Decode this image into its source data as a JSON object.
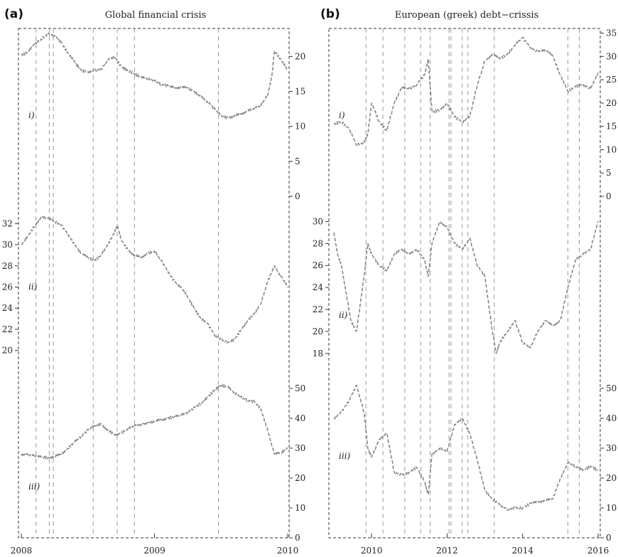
{
  "colors": {
    "series": "#808080",
    "event_line": "#9a9a9a",
    "frame": "#333333"
  },
  "chart_data": [
    {
      "type": "line",
      "panel_label": "(a)",
      "title": "Global financial crisis",
      "x_axis": {
        "range": [
          2008.0,
          2010.0
        ],
        "ticks": [
          2008,
          2009,
          2010
        ],
        "tick_labels": [
          "2008",
          "2009",
          "2010"
        ]
      },
      "event_dates": [
        2008.11,
        2008.21,
        2008.24,
        2008.54,
        2008.72,
        2008.85,
        2009.48
      ],
      "grid": false,
      "series": [
        {
          "label": "i)",
          "axis_side": "right",
          "ylim": [
            0,
            24
          ],
          "ticks": [
            0,
            5,
            10,
            15,
            20
          ],
          "x": [
            2008.0,
            2008.05,
            2008.1,
            2008.15,
            2008.2,
            2008.25,
            2008.3,
            2008.35,
            2008.4,
            2008.45,
            2008.5,
            2008.55,
            2008.6,
            2008.65,
            2008.7,
            2008.75,
            2008.8,
            2008.85,
            2008.9,
            2008.95,
            2009.0,
            2009.05,
            2009.1,
            2009.15,
            2009.2,
            2009.25,
            2009.3,
            2009.35,
            2009.4,
            2009.45,
            2009.5,
            2009.55,
            2009.6,
            2009.65,
            2009.7,
            2009.75,
            2009.8,
            2009.85,
            2009.88,
            2009.9,
            2009.95,
            2010.0
          ],
          "y": [
            20.2,
            20.6,
            21.8,
            22.5,
            23.2,
            23.0,
            22.0,
            20.5,
            19.2,
            18.0,
            17.8,
            18.0,
            18.2,
            19.5,
            20.0,
            18.5,
            18.0,
            17.5,
            17.0,
            16.8,
            16.5,
            16.0,
            15.8,
            15.5,
            15.6,
            15.5,
            15.0,
            14.2,
            13.5,
            12.5,
            11.5,
            11.2,
            11.5,
            11.8,
            12.2,
            12.6,
            13.0,
            14.5,
            17.0,
            20.8,
            19.5,
            18.0
          ]
        },
        {
          "label": "ii)",
          "axis_side": "left",
          "ylim": [
            18.5,
            33.5
          ],
          "ticks": [
            20,
            22,
            24,
            26,
            28,
            30,
            32
          ],
          "x": [
            2008.0,
            2008.05,
            2008.1,
            2008.15,
            2008.2,
            2008.25,
            2008.3,
            2008.35,
            2008.4,
            2008.45,
            2008.5,
            2008.55,
            2008.6,
            2008.65,
            2008.7,
            2008.72,
            2008.75,
            2008.8,
            2008.85,
            2008.9,
            2008.95,
            2009.0,
            2009.05,
            2009.1,
            2009.15,
            2009.2,
            2009.25,
            2009.3,
            2009.35,
            2009.4,
            2009.45,
            2009.5,
            2009.55,
            2009.6,
            2009.65,
            2009.7,
            2009.75,
            2009.8,
            2009.85,
            2009.9,
            2009.95,
            2010.0
          ],
          "y": [
            30.0,
            30.8,
            31.8,
            32.6,
            32.5,
            32.2,
            31.8,
            31.0,
            30.0,
            29.2,
            28.8,
            28.5,
            29.0,
            30.0,
            31.2,
            31.8,
            30.5,
            29.5,
            29.0,
            28.8,
            29.2,
            29.4,
            28.5,
            27.5,
            26.5,
            26.0,
            25.0,
            24.0,
            23.0,
            22.5,
            21.5,
            21.0,
            20.8,
            21.0,
            22.0,
            22.8,
            23.5,
            24.5,
            26.5,
            28.0,
            27.0,
            26.0
          ]
        },
        {
          "label": "iii)",
          "axis_side": "right",
          "ylim": [
            0,
            55
          ],
          "ticks": [
            0,
            10,
            20,
            30,
            40,
            50
          ],
          "x": [
            2008.0,
            2008.05,
            2008.1,
            2008.15,
            2008.2,
            2008.25,
            2008.3,
            2008.35,
            2008.4,
            2008.45,
            2008.5,
            2008.55,
            2008.6,
            2008.65,
            2008.7,
            2008.75,
            2008.8,
            2008.85,
            2008.9,
            2008.95,
            2009.0,
            2009.05,
            2009.1,
            2009.15,
            2009.2,
            2009.25,
            2009.3,
            2009.35,
            2009.4,
            2009.45,
            2009.5,
            2009.55,
            2009.6,
            2009.65,
            2009.7,
            2009.75,
            2009.8,
            2009.85,
            2009.9,
            2009.95,
            2010.0
          ],
          "y": [
            28.0,
            27.8,
            27.5,
            27.0,
            26.8,
            27.2,
            28.0,
            30.0,
            32.0,
            34.0,
            36.0,
            37.5,
            38.0,
            36.0,
            34.5,
            35.0,
            36.5,
            37.5,
            38.0,
            38.5,
            39.0,
            39.5,
            40.0,
            40.5,
            41.0,
            42.0,
            43.5,
            45.0,
            47.0,
            49.5,
            51.0,
            50.5,
            48.5,
            47.0,
            46.0,
            45.5,
            43.0,
            36.0,
            28.0,
            28.5,
            30.0
          ]
        }
      ]
    },
    {
      "type": "line",
      "panel_label": "(b)",
      "title": "European (greek) debt−crissis",
      "x_axis": {
        "range": [
          2009.0,
          2016.0
        ],
        "ticks": [
          2010,
          2012,
          2014,
          2016
        ],
        "tick_labels": [
          "2010",
          "2012",
          "2014",
          "2016"
        ]
      },
      "event_dates": [
        2009.85,
        2010.3,
        2010.88,
        2011.3,
        2011.55,
        2012.05,
        2012.1,
        2012.4,
        2012.55,
        2013.25,
        2015.2,
        2015.5
      ],
      "grid": false,
      "series": [
        {
          "label": "i)",
          "axis_side": "right",
          "ylim": [
            0,
            36
          ],
          "ticks": [
            0,
            5,
            10,
            15,
            20,
            25,
            30,
            35
          ],
          "x": [
            2009.0,
            2009.2,
            2009.4,
            2009.6,
            2009.8,
            2009.9,
            2010.0,
            2010.2,
            2010.4,
            2010.6,
            2010.8,
            2011.0,
            2011.2,
            2011.4,
            2011.5,
            2011.6,
            2011.8,
            2012.0,
            2012.2,
            2012.4,
            2012.6,
            2012.8,
            2013.0,
            2013.2,
            2013.4,
            2013.6,
            2013.8,
            2014.0,
            2014.2,
            2014.4,
            2014.6,
            2014.8,
            2015.0,
            2015.2,
            2015.4,
            2015.6,
            2015.8,
            2016.0
          ],
          "y": [
            15.5,
            16.0,
            14.5,
            11.0,
            11.5,
            13.5,
            20.0,
            16.0,
            14.0,
            20.0,
            23.5,
            23.0,
            24.0,
            26.0,
            29.5,
            18.0,
            18.5,
            20.0,
            17.0,
            16.0,
            17.0,
            24.0,
            29.0,
            30.5,
            29.5,
            30.5,
            32.5,
            34.0,
            32.0,
            31.0,
            31.5,
            30.0,
            26.0,
            22.5,
            23.5,
            24.0,
            23.0,
            26.5
          ]
        },
        {
          "label": "ii)",
          "axis_side": "left",
          "ylim": [
            16.5,
            31.0
          ],
          "ticks": [
            18,
            20,
            22,
            24,
            26,
            28,
            30
          ],
          "x": [
            2009.0,
            2009.1,
            2009.2,
            2009.3,
            2009.45,
            2009.6,
            2009.8,
            2009.9,
            2010.0,
            2010.2,
            2010.4,
            2010.6,
            2010.8,
            2011.0,
            2011.2,
            2011.4,
            2011.5,
            2011.6,
            2011.8,
            2012.0,
            2012.2,
            2012.4,
            2012.6,
            2012.8,
            2013.0,
            2013.2,
            2013.3,
            2013.4,
            2013.6,
            2013.8,
            2014.0,
            2014.2,
            2014.4,
            2014.6,
            2014.8,
            2015.0,
            2015.2,
            2015.4,
            2015.6,
            2015.8,
            2016.0
          ],
          "y": [
            29.0,
            27.0,
            26.0,
            24.0,
            21.0,
            20.0,
            25.0,
            28.0,
            27.0,
            26.0,
            25.5,
            27.0,
            27.5,
            27.0,
            27.5,
            26.5,
            25.0,
            28.0,
            30.0,
            29.5,
            28.0,
            27.5,
            28.5,
            26.0,
            25.0,
            20.0,
            18.0,
            19.0,
            20.0,
            21.0,
            19.0,
            18.5,
            20.0,
            21.0,
            20.5,
            21.0,
            24.0,
            26.5,
            27.0,
            27.5,
            30.0
          ]
        },
        {
          "label": "iii)",
          "axis_side": "right",
          "ylim": [
            0,
            55
          ],
          "ticks": [
            0,
            10,
            20,
            30,
            40,
            50
          ],
          "x": [
            2009.0,
            2009.2,
            2009.4,
            2009.6,
            2009.8,
            2009.9,
            2010.0,
            2010.2,
            2010.4,
            2010.6,
            2010.8,
            2011.0,
            2011.2,
            2011.4,
            2011.5,
            2011.6,
            2011.8,
            2012.0,
            2012.2,
            2012.4,
            2012.6,
            2012.8,
            2013.0,
            2013.2,
            2013.4,
            2013.6,
            2013.8,
            2014.0,
            2014.2,
            2014.4,
            2014.6,
            2014.8,
            2015.0,
            2015.2,
            2015.4,
            2015.6,
            2015.8,
            2016.0
          ],
          "y": [
            40.0,
            42.0,
            46.0,
            51.0,
            42.0,
            30.0,
            27.0,
            33.0,
            35.0,
            22.0,
            21.0,
            22.0,
            23.5,
            19.0,
            14.5,
            28.0,
            30.0,
            29.0,
            38.0,
            40.0,
            35.0,
            26.0,
            16.0,
            13.0,
            11.0,
            9.5,
            10.0,
            10.0,
            11.5,
            12.0,
            12.5,
            13.0,
            20.0,
            25.0,
            24.0,
            22.5,
            24.0,
            22.5
          ]
        }
      ]
    }
  ]
}
